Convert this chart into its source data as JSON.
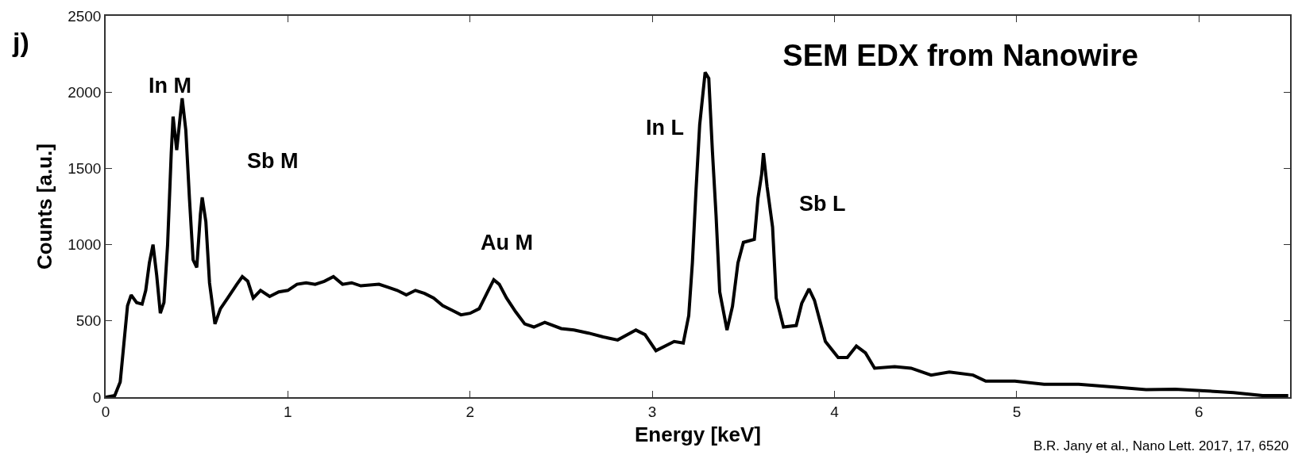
{
  "chart_data": {
    "type": "line",
    "title": "SEM EDX from Nanowire",
    "xlabel": "Energy [keV]",
    "ylabel": "Counts [a.u.]",
    "xlim": [
      0,
      6.5
    ],
    "xticks": [
      0,
      1,
      2,
      3,
      4,
      5,
      6
    ],
    "ylim": [
      0,
      2500
    ],
    "yticks": [
      0,
      500,
      1000,
      1500,
      2000,
      2500
    ],
    "marker": "none",
    "line_style": "solid",
    "annotations": [
      "j)",
      "B.R. Jany et al., Nano Lett. 2017, 17, 6520",
      "In M",
      "Sb M",
      "Au M",
      "In L",
      "Sb L"
    ],
    "x": [
      0,
      0.05,
      0.08,
      0.1,
      0.12,
      0.14,
      0.17,
      0.2,
      0.22,
      0.24,
      0.26,
      0.28,
      0.3,
      0.32,
      0.34,
      0.36,
      0.37,
      0.39,
      0.41,
      0.42,
      0.44,
      0.46,
      0.48,
      0.5,
      0.52,
      0.53,
      0.55,
      0.57,
      0.6,
      0.63,
      0.67,
      0.72,
      0.75,
      0.78,
      0.81,
      0.85,
      0.9,
      0.95,
      1.0,
      1.05,
      1.1,
      1.15,
      1.2,
      1.25,
      1.3,
      1.35,
      1.4,
      1.5,
      1.55,
      1.6,
      1.65,
      1.7,
      1.75,
      1.8,
      1.85,
      1.9,
      1.95,
      2.0,
      2.05,
      2.1,
      2.13,
      2.16,
      2.2,
      2.25,
      2.3,
      2.35,
      2.41,
      2.5,
      2.57,
      2.65,
      2.73,
      2.81,
      2.91,
      2.96,
      3.02,
      3.12,
      3.17,
      3.2,
      3.22,
      3.24,
      3.26,
      3.29,
      3.31,
      3.33,
      3.35,
      3.37,
      3.41,
      3.44,
      3.47,
      3.5,
      3.56,
      3.58,
      3.6,
      3.61,
      3.63,
      3.66,
      3.68,
      3.72,
      3.79,
      3.82,
      3.86,
      3.89,
      3.95,
      4.02,
      4.07,
      4.12,
      4.17,
      4.22,
      4.33,
      4.42,
      4.53,
      4.63,
      4.76,
      4.83,
      4.99,
      5.15,
      5.34,
      5.55,
      5.71,
      5.87,
      6.03,
      6.19,
      6.35,
      6.49
    ],
    "series": [
      {
        "color": "#000000",
        "values": [
          0,
          10,
          100,
          350,
          600,
          670,
          620,
          610,
          700,
          880,
          1000,
          800,
          550,
          620,
          1000,
          1600,
          1840,
          1620,
          1850,
          1960,
          1750,
          1300,
          900,
          850,
          1200,
          1310,
          1150,
          750,
          480,
          580,
          650,
          740,
          790,
          760,
          650,
          700,
          660,
          690,
          700,
          740,
          750,
          740,
          760,
          790,
          740,
          750,
          730,
          740,
          720,
          700,
          670,
          700,
          680,
          650,
          600,
          570,
          540,
          550,
          580,
          700,
          770,
          740,
          650,
          560,
          480,
          460,
          490,
          450,
          440,
          420,
          395,
          375,
          440,
          410,
          305,
          365,
          355,
          535,
          880,
          1360,
          1785,
          2130,
          2090,
          1610,
          1190,
          690,
          440,
          595,
          880,
          1015,
          1035,
          1305,
          1460,
          1600,
          1380,
          1115,
          650,
          460,
          470,
          615,
          710,
          635,
          365,
          260,
          260,
          335,
          290,
          190,
          200,
          190,
          145,
          165,
          145,
          105,
          105,
          85,
          85,
          65,
          50,
          52,
          42,
          30,
          10,
          10
        ]
      }
    ]
  }
}
